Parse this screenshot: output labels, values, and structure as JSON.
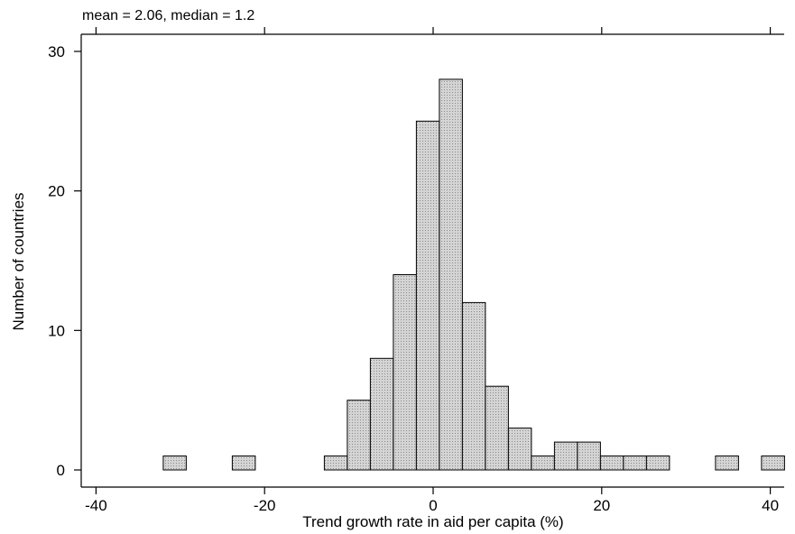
{
  "note": "mean = 2.06, median = 1.2",
  "chart_data": {
    "type": "bar",
    "title": "",
    "xlabel": "Trend growth rate in aid per capita (%)",
    "ylabel": "Number of countries",
    "xlim": [
      -42,
      42.5
    ],
    "ylim": [
      0,
      31
    ],
    "xticks": [
      -40,
      -20,
      0,
      20,
      40
    ],
    "yticks": [
      0,
      10,
      20,
      30
    ],
    "bin_width": 2.73,
    "bins": [
      {
        "left": -32.02,
        "count": 1
      },
      {
        "left": -23.83,
        "count": 1
      },
      {
        "left": -12.91,
        "count": 1
      },
      {
        "left": -10.18,
        "count": 5
      },
      {
        "left": -7.45,
        "count": 8
      },
      {
        "left": -4.72,
        "count": 14
      },
      {
        "left": -1.99,
        "count": 25
      },
      {
        "left": 0.74,
        "count": 28
      },
      {
        "left": 3.47,
        "count": 12
      },
      {
        "left": 6.2,
        "count": 6
      },
      {
        "left": 8.93,
        "count": 3
      },
      {
        "left": 11.66,
        "count": 1
      },
      {
        "left": 14.39,
        "count": 2
      },
      {
        "left": 17.12,
        "count": 2
      },
      {
        "left": 19.85,
        "count": 1
      },
      {
        "left": 22.58,
        "count": 1
      },
      {
        "left": 25.31,
        "count": 1
      },
      {
        "left": 33.5,
        "count": 1
      },
      {
        "left": 38.96,
        "count": 1
      }
    ]
  }
}
